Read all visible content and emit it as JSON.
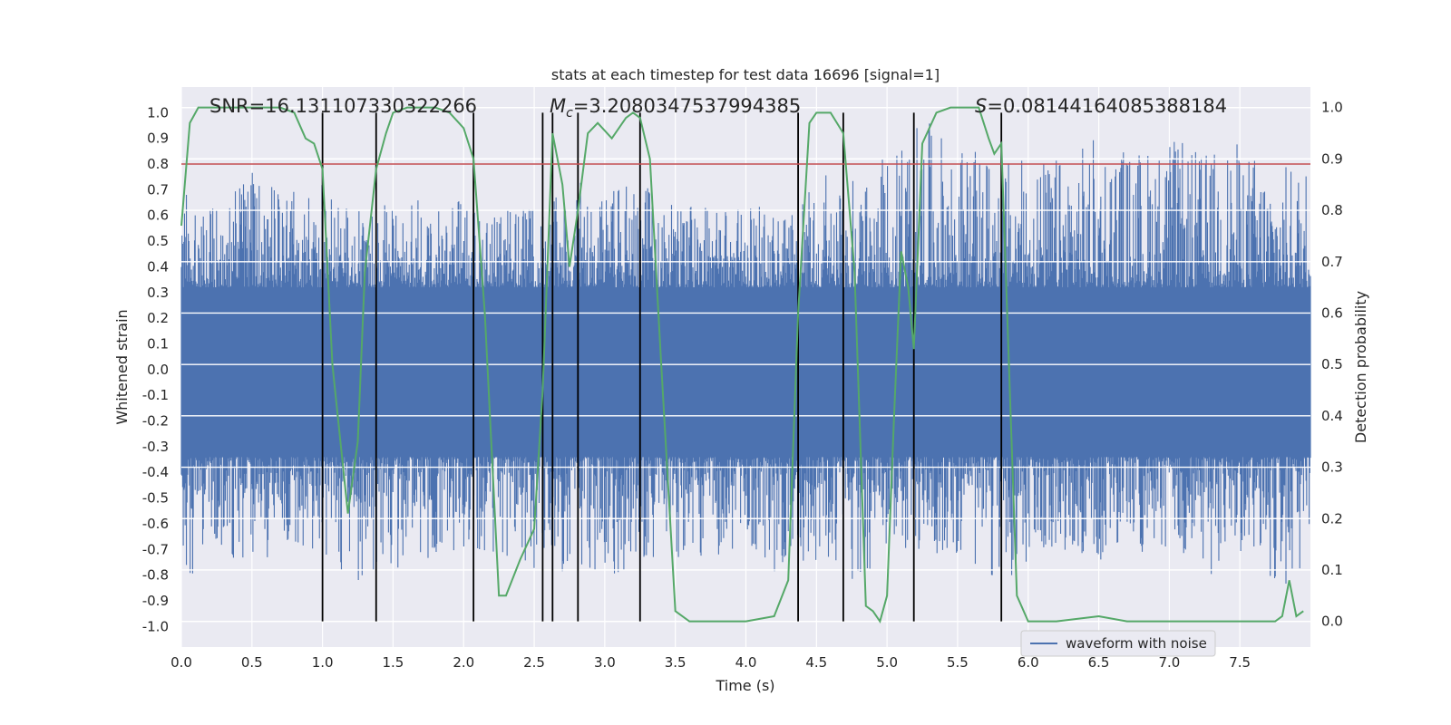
{
  "chart_data": {
    "type": "line",
    "title": "stats at each timestep for test data 16696 [signal=1]",
    "xlabel": "Time (s)",
    "ylabel": "Whitened strain",
    "ylabel_right": "Detection probability",
    "xlim": [
      0,
      8
    ],
    "ylim": [
      -1.08,
      1.1
    ],
    "ylim_right": [
      -0.05,
      1.04
    ],
    "xticks": [
      "0.0",
      "0.5",
      "1.0",
      "1.5",
      "2.0",
      "2.5",
      "3.0",
      "3.5",
      "4.0",
      "4.5",
      "5.0",
      "5.5",
      "6.0",
      "6.5",
      "7.0",
      "7.5"
    ],
    "yticks": [
      "1.0",
      "0.9",
      "0.8",
      "0.7",
      "0.6",
      "0.5",
      "0.4",
      "0.3",
      "0.2",
      "0.1",
      "0.0",
      "-0.1",
      "-0.2",
      "-0.3",
      "-0.4",
      "-0.5",
      "-0.6",
      "-0.7",
      "-0.8",
      "-0.9",
      "-1.0"
    ],
    "yticks_right": [
      "1.0",
      "0.9",
      "0.8",
      "0.7",
      "0.6",
      "0.5",
      "0.4",
      "0.3",
      "0.2",
      "0.1",
      "0.0"
    ],
    "grid": true,
    "legend": {
      "position": "lower-right",
      "entries": [
        "waveform with noise"
      ]
    },
    "annotations": {
      "snr": "SNR=16.131107330322266",
      "mc_symbol": "M",
      "mc_sub": "c",
      "mc_value": "=3.2080347537994385",
      "s_symbol": "S",
      "s_value": "=0.08144164085388184"
    },
    "threshold_line": {
      "value": 0.8,
      "color": "#c44e52"
    },
    "event_lines_x": [
      1.0,
      1.38,
      2.07,
      2.56,
      2.63,
      2.81,
      3.25,
      4.37,
      4.69,
      5.19,
      5.81
    ],
    "event_line_range": [
      -0.98,
      1.0
    ],
    "series": [
      {
        "name": "waveform with noise",
        "color": "#4c72b0",
        "envelope_x": [
          0.0,
          0.25,
          0.5,
          0.75,
          1.0,
          1.25,
          1.5,
          1.75,
          2.0,
          2.25,
          2.5,
          2.75,
          3.0,
          3.25,
          3.5,
          3.75,
          4.0,
          4.25,
          4.5,
          4.75,
          5.0,
          5.25,
          5.5,
          5.75,
          6.0,
          6.25,
          6.5,
          6.75,
          7.0,
          7.25,
          7.5,
          7.75,
          8.0
        ],
        "envelope_max": [
          0.72,
          0.63,
          0.77,
          0.7,
          0.72,
          0.62,
          0.65,
          0.68,
          0.67,
          0.62,
          0.63,
          0.73,
          0.74,
          0.74,
          0.64,
          0.63,
          0.65,
          0.62,
          0.81,
          0.76,
          0.83,
          0.98,
          0.88,
          0.82,
          0.82,
          0.83,
          0.92,
          0.86,
          0.91,
          0.85,
          0.89,
          0.79,
          0.82
        ],
        "envelope_min": [
          -0.92,
          -0.7,
          -0.81,
          -0.69,
          -0.74,
          -0.82,
          -0.78,
          -0.74,
          -0.72,
          -0.71,
          -0.78,
          -0.8,
          -0.83,
          -0.74,
          -0.73,
          -0.73,
          -0.73,
          -0.8,
          -0.75,
          -0.86,
          -0.71,
          -0.71,
          -0.73,
          -0.82,
          -0.8,
          -0.72,
          -0.75,
          -0.71,
          -0.74,
          -0.83,
          -0.72,
          -0.83,
          -0.9
        ]
      },
      {
        "name": "Detection probability",
        "color": "#55a868",
        "axis": "right",
        "x": [
          0.0,
          0.06,
          0.12,
          0.2,
          0.3,
          0.5,
          0.7,
          0.8,
          0.88,
          0.94,
          1.0,
          1.07,
          1.18,
          1.25,
          1.3,
          1.38,
          1.45,
          1.5,
          1.6,
          1.8,
          1.9,
          2.0,
          2.07,
          2.15,
          2.25,
          2.3,
          2.4,
          2.5,
          2.56,
          2.63,
          2.7,
          2.75,
          2.81,
          2.88,
          2.95,
          3.05,
          3.15,
          3.2,
          3.25,
          3.32,
          3.4,
          3.5,
          3.6,
          3.8,
          4.0,
          4.2,
          4.3,
          4.37,
          4.45,
          4.5,
          4.6,
          4.69,
          4.77,
          4.85,
          4.9,
          4.95,
          5.0,
          5.05,
          5.1,
          5.15,
          5.19,
          5.25,
          5.35,
          5.45,
          5.55,
          5.65,
          5.72,
          5.76,
          5.81,
          5.92,
          6.0,
          6.2,
          6.5,
          6.7,
          6.9,
          7.1,
          7.3,
          7.5,
          7.6,
          7.7,
          7.75,
          7.8,
          7.85,
          7.9,
          7.95
        ],
        "y": [
          0.77,
          0.97,
          1.0,
          1.0,
          1.0,
          1.0,
          1.0,
          0.99,
          0.94,
          0.93,
          0.88,
          0.5,
          0.21,
          0.35,
          0.68,
          0.88,
          0.95,
          0.99,
          1.0,
          1.0,
          0.99,
          0.96,
          0.9,
          0.6,
          0.05,
          0.05,
          0.12,
          0.18,
          0.45,
          0.95,
          0.85,
          0.69,
          0.8,
          0.95,
          0.97,
          0.94,
          0.98,
          0.99,
          0.98,
          0.9,
          0.5,
          0.02,
          0.0,
          0.0,
          0.0,
          0.01,
          0.08,
          0.6,
          0.97,
          0.99,
          0.99,
          0.95,
          0.68,
          0.03,
          0.02,
          0.0,
          0.05,
          0.4,
          0.72,
          0.65,
          0.53,
          0.93,
          0.99,
          1.0,
          1.0,
          1.0,
          0.94,
          0.91,
          0.93,
          0.05,
          0.0,
          0.0,
          0.01,
          0.0,
          0.0,
          0.0,
          0.0,
          0.0,
          0.0,
          0.0,
          0.0,
          0.01,
          0.08,
          0.01,
          0.02
        ]
      }
    ]
  }
}
